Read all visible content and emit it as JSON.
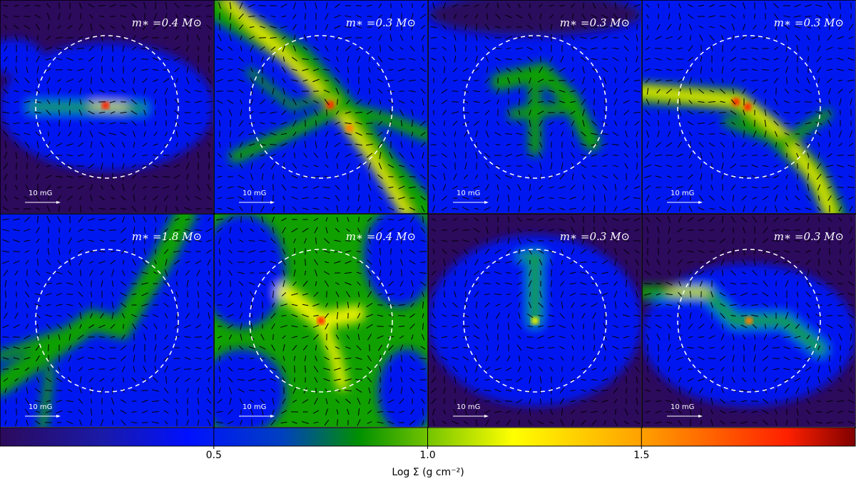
{
  "panels": [
    {
      "mass_label": "m∗ =0.4 M⊙",
      "scale_label": "10 mG"
    },
    {
      "mass_label": "m∗ =0.3 M⊙",
      "scale_label": "10 mG"
    },
    {
      "mass_label": "m∗ =0.3 M⊙",
      "scale_label": "10 mG"
    },
    {
      "mass_label": "m∗ =0.3 M⊙",
      "scale_label": "10 mG"
    },
    {
      "mass_label": "m∗ =1.8 M⊙",
      "scale_label": "10 mG"
    },
    {
      "mass_label": "m∗ =0.4 M⊙",
      "scale_label": "10 mG"
    },
    {
      "mass_label": "m∗ =0.3 M⊙",
      "scale_label": "10 mG"
    },
    {
      "mass_label": "m∗ =0.3 M⊙",
      "scale_label": "10 mG"
    }
  ],
  "colorbar": {
    "label": "Log Σ (g cm⁻²)",
    "lim": [
      0,
      2
    ],
    "ticks": [
      0.5,
      {
        "value": 1,
        "label": "1.0"
      },
      1.5
    ]
  }
}
